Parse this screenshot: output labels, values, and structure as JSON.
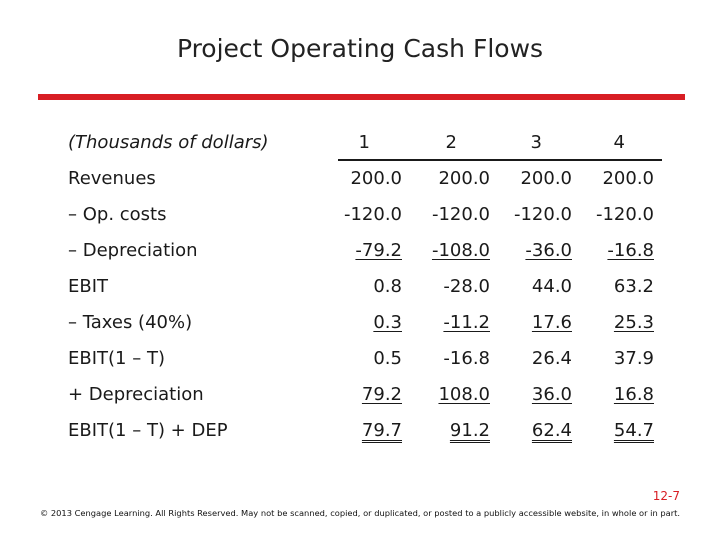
{
  "title": "Project Operating Cash Flows",
  "accent_color": "#d81e24",
  "table": {
    "header_label": "(Thousands of dollars)",
    "years": [
      "1",
      "2",
      "3",
      "4"
    ],
    "rows": [
      {
        "label": "Revenues",
        "values": [
          "200.0",
          "200.0",
          "200.0",
          "200.0"
        ],
        "line": "none"
      },
      {
        "label": "– Op. costs",
        "values": [
          "-120.0",
          "-120.0",
          "-120.0",
          "-120.0"
        ],
        "line": "none"
      },
      {
        "label": "– Depreciation",
        "values": [
          "-79.2",
          "-108.0",
          "-36.0",
          "-16.8"
        ],
        "line": "single"
      },
      {
        "label": "EBIT",
        "values": [
          "0.8",
          "-28.0",
          "44.0",
          "63.2"
        ],
        "line": "none"
      },
      {
        "label": "– Taxes (40%)",
        "values": [
          "0.3",
          "-11.2",
          "17.6",
          "25.3"
        ],
        "line": "single"
      },
      {
        "label": "EBIT(1 – T)",
        "values": [
          "0.5",
          "-16.8",
          "26.4",
          "37.9"
        ],
        "line": "none"
      },
      {
        "label": "+ Depreciation",
        "values": [
          "79.2",
          "108.0",
          "36.0",
          "16.8"
        ],
        "line": "single"
      },
      {
        "label": "EBIT(1 – T) + DEP",
        "values": [
          "79.7",
          "91.2",
          "62.4",
          "54.7"
        ],
        "line": "double"
      }
    ]
  },
  "slide_number": "12-7",
  "footer": "© 2013 Cengage Learning. All Rights Reserved. May not be scanned, copied, or duplicated, or posted to a publicly accessible website, in whole or in part."
}
